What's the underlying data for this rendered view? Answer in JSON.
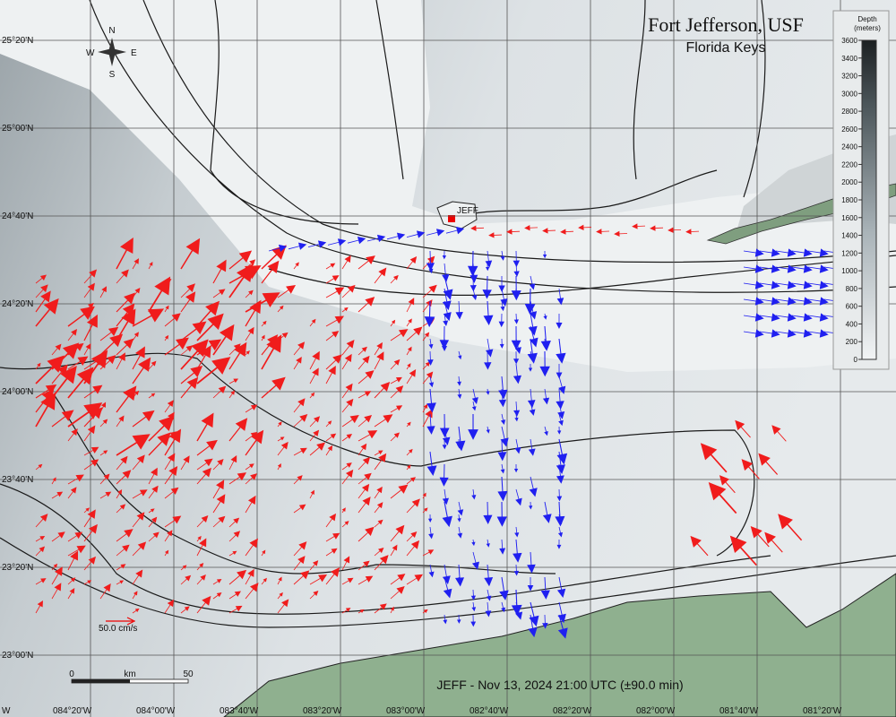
{
  "header": {
    "title": "Fort Jefferson, USF",
    "subtitle": "Florida Keys"
  },
  "legend": {
    "title": "Depth",
    "units": "(meters)",
    "ticks": [
      0,
      200,
      400,
      600,
      800,
      1000,
      1200,
      1400,
      1600,
      1800,
      2000,
      2200,
      2400,
      2600,
      2800,
      3000,
      3200,
      3400,
      3600
    ]
  },
  "latitude_labels": [
    "25°20'N",
    "25°00'N",
    "24°40'N",
    "24°20'N",
    "24°00'N",
    "23°40'N",
    "23°20'N",
    "23°00'N"
  ],
  "longitude_labels": [
    "W",
    "084°20'W",
    "084°00'W",
    "083°40'W",
    "083°20'W",
    "083°00'W",
    "082°40'W",
    "082°20'W",
    "082°00'W",
    "081°40'W",
    "081°20'W"
  ],
  "station": "JEFF",
  "compass": {
    "n": "N",
    "s": "S",
    "e": "E",
    "w": "W"
  },
  "vector_scale": "50.0 cm/s",
  "scale_bar": {
    "start": "0",
    "unit": "km",
    "end": "50"
  },
  "footer": "JEFF - Nov 13, 2024 21:00 UTC (±90.0 min)"
}
